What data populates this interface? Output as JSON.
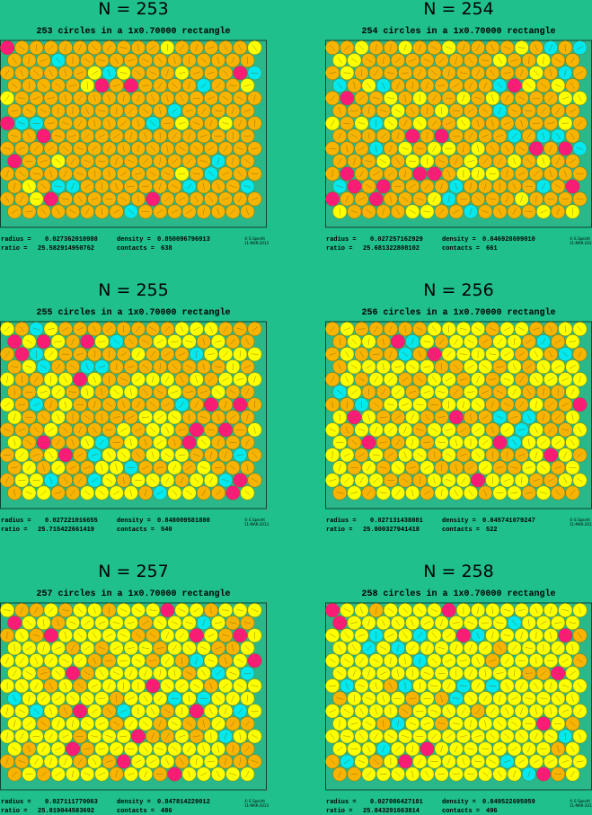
{
  "panels": [
    {
      "title": "N = 253",
      "subtitle": "253 circles in a 1x0.70000 rectangle",
      "radius_label": "radius =",
      "radius": "0.027362010988",
      "density_label": "density =",
      "density": "0.850096796913",
      "ratio_label": "ratio =",
      "ratio": "25.582914950762",
      "contacts_label": "contacts =",
      "contacts": "638",
      "credit": "© E.Specht",
      "date": "11-MAR-2013"
    },
    {
      "title": "N = 254",
      "subtitle": "254 circles in a 1x0.70000 rectangle",
      "radius_label": "radius =",
      "radius": "0.027257162929",
      "density_label": "density =",
      "density": "0.846928699010",
      "ratio_label": "ratio =",
      "ratio": "25.681322808102",
      "contacts_label": "contacts =",
      "contacts": "661",
      "credit": "© E.Specht",
      "date": "11-MAR-2013"
    },
    {
      "title": "N = 255",
      "subtitle": "255 circles in a 1x0.70000 rectangle",
      "radius_label": "radius =",
      "radius": "0.027221016655",
      "density_label": "density =",
      "density": "0.848009581880",
      "ratio_label": "ratio =",
      "ratio": "25.715422661419",
      "contacts_label": "contacts =",
      "contacts": "540",
      "credit": "© E.Specht",
      "date": "11-MAR-2013"
    },
    {
      "title": "N = 256",
      "subtitle": "256 circles in a 1x0.70000 rectangle",
      "radius_label": "radius =",
      "radius": "0.027131438081",
      "density_label": "density =",
      "density": "0.845741079247",
      "ratio_label": "ratio =",
      "ratio": "25.800327941418",
      "contacts_label": "contacts =",
      "contacts": "522",
      "credit": "© E.Specht",
      "date": "11-MAR-2013"
    },
    {
      "title": "N = 257",
      "subtitle": "257 circles in a 1x0.70000 rectangle",
      "radius_label": "radius =",
      "radius": "0.027111770063",
      "density_label": "density =",
      "density": "0.847814229012",
      "ratio_label": "ratio =",
      "ratio": "25.819044583692",
      "contacts_label": "contacts =",
      "contacts": "486",
      "credit": "© E.Specht",
      "date": "11-MAR-2013"
    },
    {
      "title": "N = 258",
      "subtitle": "258 circles in a 1x0.70000 rectangle",
      "radius_label": "radius =",
      "radius": "0.027086427181",
      "density_label": "density =",
      "density": "0.849522695059",
      "ratio_label": "ratio =",
      "ratio": "25.843201663814",
      "contacts_label": "contacts =",
      "contacts": "496",
      "credit": "© E.Specht",
      "date": "11-MAR-2013"
    }
  ]
}
